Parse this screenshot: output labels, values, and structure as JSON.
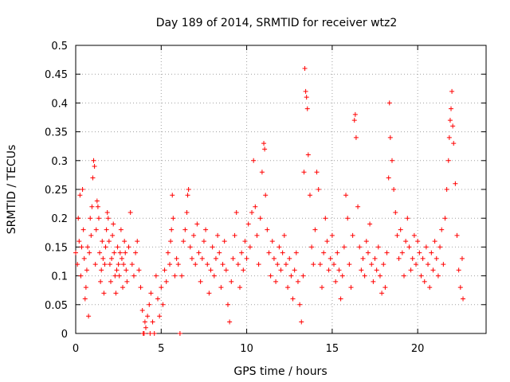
{
  "chart_data": {
    "type": "scatter",
    "title": "Day 189 of 2014, SRMTID for receiver wtz2",
    "xlabel": "GPS time / hours",
    "ylabel": "SRMTID / TECUs",
    "xlim": [
      0,
      24
    ],
    "ylim": [
      0,
      0.5
    ],
    "x_ticks": [
      0,
      5,
      10,
      15,
      20
    ],
    "x_tick_labels": [
      "0",
      "5",
      "10",
      "15",
      "20"
    ],
    "y_ticks": [
      0,
      0.05,
      0.1,
      0.15,
      0.2,
      0.25,
      0.3,
      0.35,
      0.4,
      0.45,
      0.5
    ],
    "y_tick_labels": [
      "0",
      "0.05",
      "0.1",
      "0.15",
      "0.2",
      "0.25",
      "0.3",
      "0.35",
      "0.4",
      "0.45",
      "0.5"
    ],
    "grid": true,
    "marker": "+",
    "series": [
      {
        "name": "SRMTID",
        "color": "#ff0000",
        "points": [
          [
            0.0,
            0.14
          ],
          [
            0.1,
            0.12
          ],
          [
            0.15,
            0.2
          ],
          [
            0.2,
            0.16
          ],
          [
            0.25,
            0.24
          ],
          [
            0.3,
            0.1
          ],
          [
            0.35,
            0.15
          ],
          [
            0.4,
            0.25
          ],
          [
            0.45,
            0.18
          ],
          [
            0.5,
            0.13
          ],
          [
            0.55,
            0.06
          ],
          [
            0.6,
            0.08
          ],
          [
            0.65,
            0.11
          ],
          [
            0.7,
            0.15
          ],
          [
            0.75,
            0.03
          ],
          [
            0.8,
            0.14
          ],
          [
            0.85,
            0.2
          ],
          [
            0.9,
            0.17
          ],
          [
            0.95,
            0.22
          ],
          [
            1.0,
            0.27
          ],
          [
            1.05,
            0.3
          ],
          [
            1.1,
            0.29
          ],
          [
            1.15,
            0.12
          ],
          [
            1.2,
            0.18
          ],
          [
            1.25,
            0.23
          ],
          [
            1.3,
            0.22
          ],
          [
            1.35,
            0.2
          ],
          [
            1.4,
            0.14
          ],
          [
            1.45,
            0.09
          ],
          [
            1.5,
            0.11
          ],
          [
            1.55,
            0.16
          ],
          [
            1.6,
            0.13
          ],
          [
            1.65,
            0.07
          ],
          [
            1.7,
            0.12
          ],
          [
            1.75,
            0.15
          ],
          [
            1.8,
            0.18
          ],
          [
            1.85,
            0.21
          ],
          [
            1.9,
            0.2
          ],
          [
            1.95,
            0.16
          ],
          [
            2.0,
            0.12
          ],
          [
            2.05,
            0.09
          ],
          [
            2.1,
            0.13
          ],
          [
            2.15,
            0.17
          ],
          [
            2.2,
            0.19
          ],
          [
            2.25,
            0.14
          ],
          [
            2.3,
            0.1
          ],
          [
            2.35,
            0.07
          ],
          [
            2.4,
            0.11
          ],
          [
            2.45,
            0.15
          ],
          [
            2.5,
            0.12
          ],
          [
            2.55,
            0.1
          ],
          [
            2.6,
            0.14
          ],
          [
            2.65,
            0.18
          ],
          [
            2.7,
            0.13
          ],
          [
            2.75,
            0.08
          ],
          [
            2.8,
            0.12
          ],
          [
            2.85,
            0.16
          ],
          [
            2.9,
            0.14
          ],
          [
            2.95,
            0.11
          ],
          [
            3.0,
            0.09
          ],
          [
            3.1,
            0.15
          ],
          [
            3.2,
            0.21
          ],
          [
            3.3,
            0.12
          ],
          [
            3.4,
            0.1
          ],
          [
            3.5,
            0.14
          ],
          [
            3.6,
            0.16
          ],
          [
            3.7,
            0.11
          ],
          [
            3.8,
            0.08
          ],
          [
            3.9,
            0.04
          ],
          [
            3.95,
            0.0
          ],
          [
            4.0,
            0.0
          ],
          [
            4.05,
            0.02
          ],
          [
            4.1,
            0.01
          ],
          [
            4.2,
            0.03
          ],
          [
            4.3,
            0.05
          ],
          [
            4.35,
            0.0
          ],
          [
            4.4,
            0.07
          ],
          [
            4.5,
            0.02
          ],
          [
            4.6,
            0.0
          ],
          [
            4.7,
            0.1
          ],
          [
            4.8,
            0.06
          ],
          [
            4.9,
            0.03
          ],
          [
            5.0,
            0.08
          ],
          [
            5.1,
            0.05
          ],
          [
            5.2,
            0.11
          ],
          [
            5.3,
            0.09
          ],
          [
            5.4,
            0.14
          ],
          [
            5.5,
            0.12
          ],
          [
            5.55,
            0.16
          ],
          [
            5.6,
            0.18
          ],
          [
            5.65,
            0.24
          ],
          [
            5.7,
            0.2
          ],
          [
            5.8,
            0.1
          ],
          [
            5.9,
            0.13
          ],
          [
            6.0,
            0.12
          ],
          [
            6.1,
            0.0
          ],
          [
            6.2,
            0.1
          ],
          [
            6.3,
            0.16
          ],
          [
            6.4,
            0.18
          ],
          [
            6.5,
            0.21
          ],
          [
            6.55,
            0.24
          ],
          [
            6.6,
            0.25
          ],
          [
            6.7,
            0.15
          ],
          [
            6.8,
            0.13
          ],
          [
            6.9,
            0.17
          ],
          [
            7.0,
            0.12
          ],
          [
            7.1,
            0.19
          ],
          [
            7.2,
            0.14
          ],
          [
            7.3,
            0.09
          ],
          [
            7.4,
            0.13
          ],
          [
            7.5,
            0.16
          ],
          [
            7.6,
            0.18
          ],
          [
            7.7,
            0.12
          ],
          [
            7.8,
            0.07
          ],
          [
            7.9,
            0.11
          ],
          [
            8.0,
            0.15
          ],
          [
            8.1,
            0.1
          ],
          [
            8.2,
            0.13
          ],
          [
            8.3,
            0.17
          ],
          [
            8.4,
            0.14
          ],
          [
            8.5,
            0.08
          ],
          [
            8.6,
            0.12
          ],
          [
            8.7,
            0.16
          ],
          [
            8.8,
            0.11
          ],
          [
            8.9,
            0.05
          ],
          [
            9.0,
            0.02
          ],
          [
            9.1,
            0.09
          ],
          [
            9.2,
            0.13
          ],
          [
            9.3,
            0.17
          ],
          [
            9.4,
            0.21
          ],
          [
            9.5,
            0.12
          ],
          [
            9.6,
            0.08
          ],
          [
            9.7,
            0.14
          ],
          [
            9.8,
            0.11
          ],
          [
            9.9,
            0.16
          ],
          [
            10.0,
            0.13
          ],
          [
            10.1,
            0.19
          ],
          [
            10.2,
            0.15
          ],
          [
            10.3,
            0.21
          ],
          [
            10.4,
            0.3
          ],
          [
            10.5,
            0.22
          ],
          [
            10.6,
            0.17
          ],
          [
            10.7,
            0.12
          ],
          [
            10.8,
            0.2
          ],
          [
            10.9,
            0.28
          ],
          [
            11.0,
            0.33
          ],
          [
            11.05,
            0.32
          ],
          [
            11.1,
            0.24
          ],
          [
            11.2,
            0.18
          ],
          [
            11.3,
            0.14
          ],
          [
            11.4,
            0.1
          ],
          [
            11.5,
            0.16
          ],
          [
            11.6,
            0.13
          ],
          [
            11.7,
            0.09
          ],
          [
            11.8,
            0.12
          ],
          [
            11.9,
            0.15
          ],
          [
            12.0,
            0.11
          ],
          [
            12.1,
            0.14
          ],
          [
            12.2,
            0.17
          ],
          [
            12.3,
            0.12
          ],
          [
            12.4,
            0.08
          ],
          [
            12.5,
            0.13
          ],
          [
            12.6,
            0.1
          ],
          [
            12.7,
            0.06
          ],
          [
            12.8,
            0.11
          ],
          [
            12.9,
            0.14
          ],
          [
            13.0,
            0.09
          ],
          [
            13.1,
            0.05
          ],
          [
            13.2,
            0.02
          ],
          [
            13.3,
            0.1
          ],
          [
            13.35,
            0.28
          ],
          [
            13.4,
            0.46
          ],
          [
            13.45,
            0.42
          ],
          [
            13.5,
            0.41
          ],
          [
            13.55,
            0.39
          ],
          [
            13.6,
            0.31
          ],
          [
            13.7,
            0.24
          ],
          [
            13.8,
            0.15
          ],
          [
            13.9,
            0.12
          ],
          [
            14.0,
            0.18
          ],
          [
            14.1,
            0.28
          ],
          [
            14.2,
            0.25
          ],
          [
            14.3,
            0.12
          ],
          [
            14.4,
            0.08
          ],
          [
            14.5,
            0.14
          ],
          [
            14.6,
            0.2
          ],
          [
            14.7,
            0.16
          ],
          [
            14.8,
            0.11
          ],
          [
            14.9,
            0.13
          ],
          [
            15.0,
            0.17
          ],
          [
            15.1,
            0.12
          ],
          [
            15.2,
            0.09
          ],
          [
            15.3,
            0.14
          ],
          [
            15.4,
            0.11
          ],
          [
            15.5,
            0.06
          ],
          [
            15.6,
            0.1
          ],
          [
            15.7,
            0.15
          ],
          [
            15.8,
            0.24
          ],
          [
            15.9,
            0.2
          ],
          [
            16.0,
            0.12
          ],
          [
            16.1,
            0.08
          ],
          [
            16.2,
            0.17
          ],
          [
            16.3,
            0.37
          ],
          [
            16.35,
            0.38
          ],
          [
            16.4,
            0.34
          ],
          [
            16.5,
            0.22
          ],
          [
            16.6,
            0.15
          ],
          [
            16.7,
            0.11
          ],
          [
            16.8,
            0.13
          ],
          [
            16.9,
            0.1
          ],
          [
            17.0,
            0.16
          ],
          [
            17.1,
            0.14
          ],
          [
            17.2,
            0.19
          ],
          [
            17.3,
            0.12
          ],
          [
            17.4,
            0.09
          ],
          [
            17.5,
            0.13
          ],
          [
            17.6,
            0.11
          ],
          [
            17.7,
            0.15
          ],
          [
            17.8,
            0.1
          ],
          [
            17.9,
            0.07
          ],
          [
            18.0,
            0.12
          ],
          [
            18.1,
            0.08
          ],
          [
            18.2,
            0.14
          ],
          [
            18.3,
            0.27
          ],
          [
            18.35,
            0.4
          ],
          [
            18.4,
            0.34
          ],
          [
            18.5,
            0.3
          ],
          [
            18.6,
            0.25
          ],
          [
            18.7,
            0.21
          ],
          [
            18.8,
            0.17
          ],
          [
            18.9,
            0.13
          ],
          [
            19.0,
            0.18
          ],
          [
            19.1,
            0.14
          ],
          [
            19.2,
            0.1
          ],
          [
            19.3,
            0.16
          ],
          [
            19.4,
            0.2
          ],
          [
            19.5,
            0.15
          ],
          [
            19.6,
            0.11
          ],
          [
            19.7,
            0.13
          ],
          [
            19.8,
            0.17
          ],
          [
            19.9,
            0.12
          ],
          [
            20.0,
            0.16
          ],
          [
            20.1,
            0.14
          ],
          [
            20.2,
            0.1
          ],
          [
            20.3,
            0.13
          ],
          [
            20.4,
            0.09
          ],
          [
            20.5,
            0.15
          ],
          [
            20.6,
            0.12
          ],
          [
            20.7,
            0.08
          ],
          [
            20.8,
            0.14
          ],
          [
            20.9,
            0.11
          ],
          [
            21.0,
            0.16
          ],
          [
            21.1,
            0.13
          ],
          [
            21.2,
            0.1
          ],
          [
            21.3,
            0.15
          ],
          [
            21.4,
            0.18
          ],
          [
            21.5,
            0.12
          ],
          [
            21.6,
            0.2
          ],
          [
            21.7,
            0.25
          ],
          [
            21.8,
            0.3
          ],
          [
            21.85,
            0.34
          ],
          [
            21.9,
            0.37
          ],
          [
            21.95,
            0.39
          ],
          [
            22.0,
            0.42
          ],
          [
            22.05,
            0.36
          ],
          [
            22.1,
            0.33
          ],
          [
            22.2,
            0.26
          ],
          [
            22.3,
            0.17
          ],
          [
            22.4,
            0.11
          ],
          [
            22.5,
            0.08
          ],
          [
            22.6,
            0.13
          ],
          [
            22.65,
            0.06
          ]
        ]
      }
    ]
  }
}
